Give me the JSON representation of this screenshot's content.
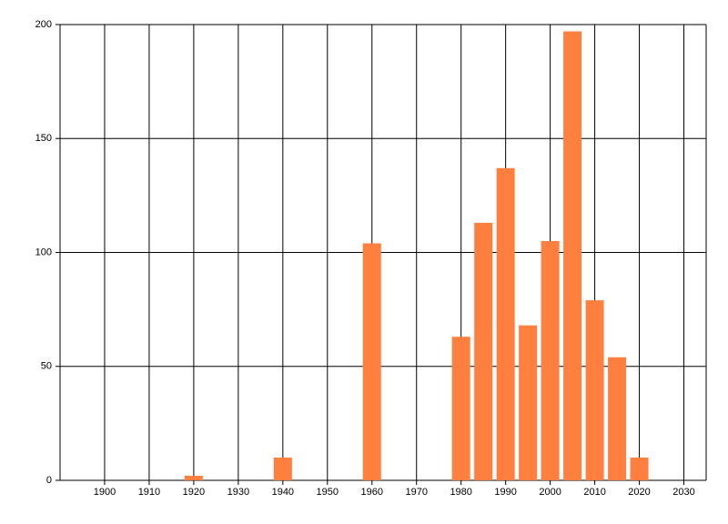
{
  "chart_data": {
    "type": "bar",
    "x": [
      1920,
      1940,
      1960,
      1980,
      1985,
      1990,
      1995,
      2000,
      2005,
      2010,
      2015,
      2020
    ],
    "values": [
      2,
      10,
      104,
      63,
      113,
      137,
      68,
      105,
      197,
      79,
      54,
      10
    ],
    "color": "#ff7f3f",
    "xlim": [
      1890,
      2035
    ],
    "xticks": [
      1900,
      1910,
      1920,
      1930,
      1940,
      1950,
      1960,
      1970,
      1980,
      1990,
      2000,
      2010,
      2020,
      2030
    ],
    "ylim": [
      0,
      200
    ],
    "yticks": [
      0,
      50,
      100,
      150,
      200
    ],
    "grid": true
  }
}
